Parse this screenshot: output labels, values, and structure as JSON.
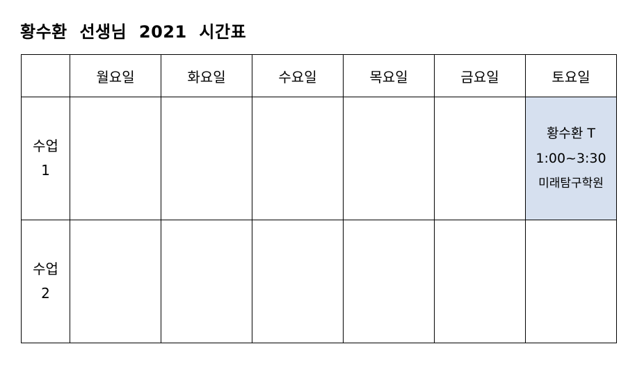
{
  "title": "황수환  선생님  2021  시간표",
  "colors": {
    "border": "#000000",
    "highlight_cell": "#d6e0ef"
  },
  "table": {
    "corner_label": "",
    "days": [
      "월요일",
      "화요일",
      "수요일",
      "목요일",
      "금요일",
      "토요일"
    ],
    "rows": [
      {
        "label_line1": "수업",
        "label_line2": "1",
        "cells": [
          {},
          {},
          {},
          {},
          {},
          {
            "teacher": "황수환  T",
            "time": "1:00~3:30",
            "academy": "미래탐구학원"
          }
        ]
      },
      {
        "label_line1": "수업",
        "label_line2": "2",
        "cells": [
          {},
          {},
          {},
          {},
          {},
          {}
        ]
      }
    ]
  }
}
